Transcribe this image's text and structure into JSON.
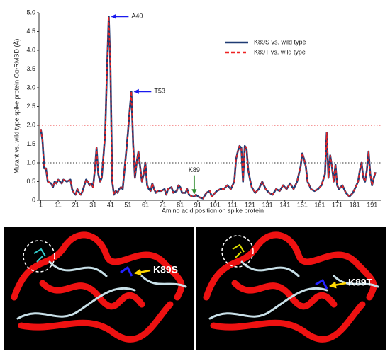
{
  "chart_data": {
    "type": "line",
    "ylabel": "Mutant vs. wild type spike protein Cα-RMSD (Å)",
    "xlabel": "Amino acid position on spike protein",
    "x": [
      1,
      2,
      3,
      4,
      5,
      7,
      8,
      9,
      10,
      11,
      13,
      14,
      16,
      18,
      19,
      20,
      21,
      22,
      23,
      24,
      25,
      27,
      28,
      29,
      30,
      31,
      32,
      33,
      34,
      35,
      36,
      37,
      38,
      39,
      40,
      41,
      42,
      43,
      44,
      45,
      46,
      47,
      48,
      49,
      50,
      51,
      52,
      53,
      54,
      55,
      56,
      57,
      58,
      59,
      60,
      61,
      62,
      63,
      64,
      65,
      66,
      67,
      68,
      70,
      72,
      73,
      74,
      76,
      77,
      79,
      80,
      81,
      82,
      84,
      85,
      86,
      88,
      89,
      90,
      92,
      94,
      96,
      98,
      99,
      100,
      102,
      104,
      106,
      108,
      110,
      112,
      113,
      114,
      115,
      116,
      117,
      118,
      119,
      120,
      121,
      122,
      124,
      126,
      128,
      130,
      132,
      134,
      136,
      138,
      140,
      142,
      144,
      146,
      148,
      150,
      151,
      152,
      153,
      154,
      156,
      158,
      160,
      162,
      164,
      165,
      166,
      167,
      168,
      169,
      170,
      171,
      172,
      174,
      176,
      178,
      180,
      182,
      183,
      184,
      185,
      186,
      187,
      188,
      189,
      190,
      191,
      192,
      193
    ],
    "series": [
      {
        "name": "K89S vs. wild type",
        "color": "#1f3b73",
        "dash": false,
        "values": [
          1.9,
          1.6,
          0.85,
          0.85,
          0.5,
          0.45,
          0.35,
          0.5,
          0.45,
          0.55,
          0.45,
          0.55,
          0.5,
          0.55,
          0.3,
          0.2,
          0.15,
          0.3,
          0.2,
          0.15,
          0.25,
          0.55,
          0.5,
          0.4,
          0.45,
          0.35,
          0.8,
          1.4,
          0.7,
          0.5,
          0.6,
          1.2,
          1.8,
          3.5,
          4.9,
          3.5,
          0.5,
          0.15,
          0.25,
          0.2,
          0.3,
          0.35,
          0.3,
          0.8,
          1.3,
          1.8,
          2.4,
          2.9,
          1.5,
          0.6,
          1.0,
          1.3,
          0.9,
          0.5,
          0.7,
          1.0,
          0.4,
          0.3,
          0.25,
          0.45,
          0.3,
          0.2,
          0.25,
          0.25,
          0.3,
          0.15,
          0.3,
          0.35,
          0.2,
          0.25,
          0.4,
          0.35,
          0.2,
          0.2,
          0.3,
          0.15,
          0.1,
          0.1,
          0.15,
          0.08,
          0.05,
          0.2,
          0.25,
          0.1,
          0.15,
          0.25,
          0.3,
          0.3,
          0.4,
          0.3,
          0.5,
          1.1,
          1.3,
          1.45,
          1.4,
          0.5,
          1.45,
          1.4,
          0.8,
          0.55,
          0.35,
          0.2,
          0.3,
          0.5,
          0.3,
          0.2,
          0.15,
          0.3,
          0.25,
          0.4,
          0.3,
          0.45,
          0.3,
          0.5,
          0.9,
          1.25,
          1.1,
          0.9,
          0.5,
          0.3,
          0.25,
          0.3,
          0.4,
          0.7,
          1.8,
          0.6,
          1.2,
          0.9,
          0.5,
          0.95,
          0.4,
          0.3,
          0.4,
          0.2,
          0.1,
          0.2,
          0.4,
          0.5,
          0.8,
          1.0,
          0.6,
          0.5,
          0.8,
          1.3,
          0.7,
          0.4,
          0.6,
          0.75
        ]
      },
      {
        "name": "K89T vs. wild type",
        "color": "#ee2222",
        "dash": true,
        "values": [
          1.9,
          1.6,
          0.85,
          0.85,
          0.5,
          0.45,
          0.35,
          0.5,
          0.45,
          0.55,
          0.45,
          0.55,
          0.5,
          0.55,
          0.3,
          0.2,
          0.15,
          0.3,
          0.2,
          0.15,
          0.25,
          0.55,
          0.5,
          0.4,
          0.45,
          0.35,
          0.8,
          1.4,
          0.7,
          0.5,
          0.6,
          1.2,
          1.8,
          3.5,
          4.9,
          3.5,
          0.5,
          0.15,
          0.25,
          0.2,
          0.3,
          0.35,
          0.3,
          0.8,
          1.3,
          1.8,
          2.4,
          2.9,
          1.5,
          0.6,
          1.0,
          1.3,
          0.9,
          0.5,
          0.7,
          1.0,
          0.4,
          0.3,
          0.25,
          0.45,
          0.3,
          0.2,
          0.25,
          0.25,
          0.3,
          0.15,
          0.3,
          0.35,
          0.2,
          0.25,
          0.4,
          0.35,
          0.2,
          0.2,
          0.3,
          0.15,
          0.1,
          0.1,
          0.15,
          0.08,
          0.05,
          0.2,
          0.25,
          0.1,
          0.15,
          0.25,
          0.3,
          0.3,
          0.4,
          0.3,
          0.5,
          1.1,
          1.3,
          1.45,
          1.4,
          0.5,
          1.45,
          1.4,
          0.8,
          0.55,
          0.35,
          0.2,
          0.3,
          0.5,
          0.3,
          0.2,
          0.15,
          0.3,
          0.25,
          0.4,
          0.3,
          0.45,
          0.3,
          0.5,
          0.9,
          1.25,
          1.1,
          0.9,
          0.5,
          0.3,
          0.25,
          0.3,
          0.4,
          0.7,
          1.8,
          0.6,
          1.2,
          0.9,
          0.5,
          0.95,
          0.4,
          0.3,
          0.4,
          0.2,
          0.1,
          0.2,
          0.4,
          0.5,
          0.8,
          1.0,
          0.6,
          0.5,
          0.8,
          1.3,
          0.7,
          0.4,
          0.6,
          0.75
        ]
      }
    ],
    "xlim": [
      0,
      196
    ],
    "ylim": [
      0,
      5
    ],
    "xticks": [
      1,
      11,
      21,
      31,
      41,
      51,
      61,
      71,
      81,
      91,
      101,
      111,
      121,
      131,
      141,
      151,
      161,
      171,
      181,
      191
    ],
    "yticks": [
      0,
      0.5,
      {
        "value": 1,
        "label": "1.0"
      },
      1.5,
      {
        "value": 2,
        "label": "2.0"
      },
      2.5,
      {
        "value": 3,
        "label": "3.0"
      },
      3.5,
      {
        "value": 4,
        "label": "4.0"
      },
      4.5,
      {
        "value": 5,
        "label": "5.0"
      }
    ],
    "hlines": [
      {
        "y": 2,
        "color": "#e33"
      },
      {
        "y": 1,
        "color": "#333"
      }
    ],
    "annotations": [
      {
        "text": "A40",
        "x": 40,
        "color": "#1a1aee",
        "side": "right"
      },
      {
        "text": "T53",
        "x": 53,
        "color": "#1a1aee",
        "side": "right"
      },
      {
        "text": "K89",
        "x": 89,
        "color": "#2e8b2e",
        "side": "top"
      }
    ],
    "legend": "top-right"
  },
  "panels": [
    {
      "label": "K89S"
    },
    {
      "label": "K89T"
    }
  ]
}
